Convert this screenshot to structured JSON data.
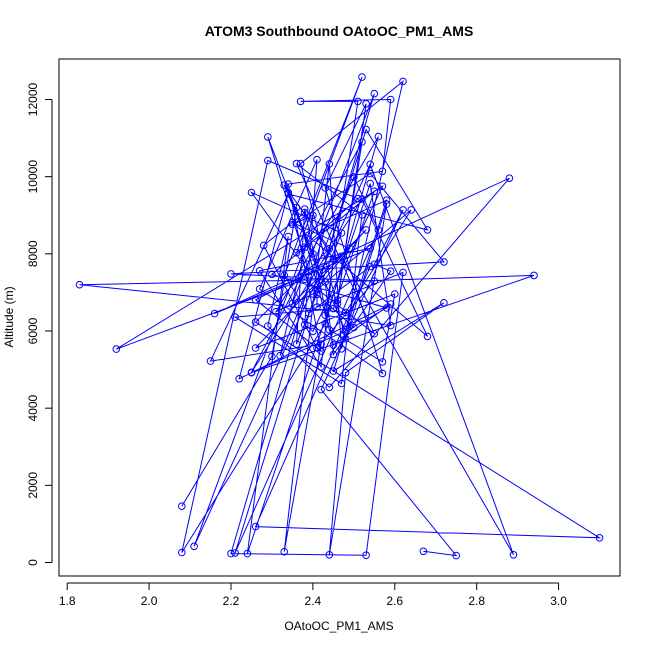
{
  "chart_data": {
    "type": "line",
    "title": "ATOM3 Southbound OAtoOC_PM1_AMS",
    "xlabel": "OAtoOC_PM1_AMS",
    "ylabel": "Altitude (m)",
    "xlim": [
      1.78,
      3.15
    ],
    "ylim": [
      -350,
      13050
    ],
    "x_ticks": [
      1.8,
      2.0,
      2.2,
      2.4,
      2.6,
      2.8,
      3.0
    ],
    "x_tick_labels": [
      "1.8",
      "2.0",
      "2.2",
      "2.4",
      "2.6",
      "2.8",
      "3.0"
    ],
    "y_ticks": [
      0,
      2000,
      4000,
      6000,
      8000,
      10000,
      12000
    ],
    "y_tick_labels": [
      "0",
      "2000",
      "4000",
      "6000",
      "8000",
      "10000",
      "12000"
    ],
    "grid": false,
    "legend": "none",
    "color": "#0000ff",
    "series": [
      {
        "points": [
          [
            2.08,
            1460
          ],
          [
            2.3,
            5340
          ],
          [
            2.36,
            9200
          ],
          [
            2.45,
            5640
          ],
          [
            2.59,
            6700
          ],
          [
            2.22,
            4760
          ],
          [
            2.34,
            9590
          ],
          [
            2.42,
            7330
          ],
          [
            1.83,
            7200
          ],
          [
            2.48,
            6480
          ],
          [
            2.64,
            9140
          ],
          [
            2.41,
            7070
          ],
          [
            2.55,
            12150
          ],
          [
            2.35,
            6710
          ],
          [
            2.53,
            8620
          ],
          [
            2.26,
            5560
          ],
          [
            2.6,
            6960
          ],
          [
            2.57,
            5200
          ],
          [
            2.44,
            6030
          ],
          [
            2.38,
            9160
          ],
          [
            2.36,
            5660
          ],
          [
            2.47,
            8540
          ],
          [
            2.25,
            9590
          ],
          [
            2.39,
            7540
          ],
          [
            2.29,
            11030
          ],
          [
            2.4,
            8000
          ],
          [
            2.25,
            4930
          ],
          [
            2.52,
            9420
          ],
          [
            2.68,
            5860
          ],
          [
            2.35,
            8810
          ],
          [
            2.49,
            8140
          ],
          [
            2.4,
            6960
          ],
          [
            2.31,
            6500
          ],
          [
            2.56,
            11040
          ],
          [
            2.43,
            6190
          ],
          [
            2.08,
            260
          ],
          [
            2.29,
            10420
          ],
          [
            2.51,
            9430
          ],
          [
            2.36,
            8030
          ],
          [
            2.52,
            12580
          ],
          [
            2.33,
            7440
          ],
          [
            2.39,
            6460
          ],
          [
            2.54,
            7670
          ],
          [
            2.26,
            930
          ],
          [
            3.1,
            640
          ],
          [
            2.26,
            6230
          ],
          [
            2.44,
            8130
          ],
          [
            2.33,
            9780
          ],
          [
            2.48,
            5990
          ],
          [
            2.58,
            6600
          ],
          [
            2.3,
            7470
          ],
          [
            2.55,
            9620
          ],
          [
            2.45,
            6580
          ],
          [
            2.21,
            6360
          ],
          [
            2.47,
            4640
          ],
          [
            2.52,
            9010
          ],
          [
            2.36,
            10340
          ],
          [
            2.55,
            5930
          ],
          [
            2.38,
            7340
          ],
          [
            1.92,
            5530
          ],
          [
            2.57,
            9750
          ],
          [
            2.4,
            5990
          ],
          [
            2.38,
            6160
          ],
          [
            2.41,
            10440
          ],
          [
            2.27,
            7090
          ],
          [
            2.57,
            4900
          ],
          [
            2.43,
            9710
          ],
          [
            2.53,
            11890
          ],
          [
            2.46,
            6710
          ],
          [
            2.46,
            6800
          ],
          [
            2.52,
            10900
          ],
          [
            2.38,
            8170
          ],
          [
            2.11,
            420
          ],
          [
            2.54,
            10320
          ],
          [
            2.89,
            200
          ],
          [
            2.47,
            7940
          ],
          [
            2.26,
            6810
          ],
          [
            2.42,
            5480
          ],
          [
            2.34,
            9810
          ],
          [
            2.57,
            10140
          ],
          [
            2.59,
            12000
          ],
          [
            2.37,
            11950
          ],
          [
            2.51,
            11950
          ],
          [
            2.43,
            6410
          ],
          [
            2.59,
            6140
          ],
          [
            2.54,
            9820
          ],
          [
            2.24,
            230
          ],
          [
            2.34,
            8450
          ],
          [
            2.29,
            6130
          ],
          [
            2.44,
            4540
          ],
          [
            2.88,
            9960
          ],
          [
            2.16,
            6450
          ],
          [
            2.54,
            8140
          ],
          [
            2.27,
            7560
          ],
          [
            2.42,
            5070
          ],
          [
            2.45,
            7860
          ],
          [
            2.38,
            9070
          ],
          [
            2.28,
            8220
          ],
          [
            2.41,
            5560
          ],
          [
            2.55,
            7290
          ],
          [
            2.2,
            7480
          ],
          [
            2.72,
            7790
          ],
          [
            2.54,
            10080
          ],
          [
            2.35,
            8760
          ],
          [
            2.4,
            9000
          ],
          [
            2.32,
            5360
          ],
          [
            2.5,
            9990
          ],
          [
            2.56,
            8620
          ],
          [
            2.21,
            250
          ],
          [
            2.53,
            11220
          ],
          [
            2.68,
            8620
          ],
          [
            2.34,
            9550
          ],
          [
            2.15,
            5220
          ],
          [
            2.42,
            5660
          ],
          [
            2.33,
            280
          ],
          [
            2.44,
            10330
          ],
          [
            2.47,
            5540
          ],
          [
            2.62,
            12470
          ],
          [
            2.37,
            10340
          ],
          [
            2.48,
            5800
          ],
          [
            2.58,
            9290
          ],
          [
            2.44,
            200
          ],
          [
            2.48,
            4920
          ],
          [
            2.72,
            6730
          ],
          [
            2.45,
            4960
          ],
          [
            2.58,
            9390
          ],
          [
            2.43,
            8680
          ],
          [
            2.2,
            230
          ],
          [
            2.53,
            190
          ],
          [
            2.62,
            7520
          ],
          [
            2.41,
            6620
          ],
          [
            2.41,
            6950
          ],
          [
            2.5,
            6090
          ],
          [
            2.25,
            4920
          ],
          [
            2.94,
            7440
          ],
          [
            2.43,
            7270
          ],
          [
            2.45,
            5390
          ],
          [
            2.59,
            7550
          ],
          [
            2.55,
            7730
          ],
          [
            2.62,
            9140
          ],
          [
            2.42,
            4480
          ],
          [
            2.75,
            180
          ],
          [
            2.67,
            290
          ]
        ]
      }
    ]
  }
}
